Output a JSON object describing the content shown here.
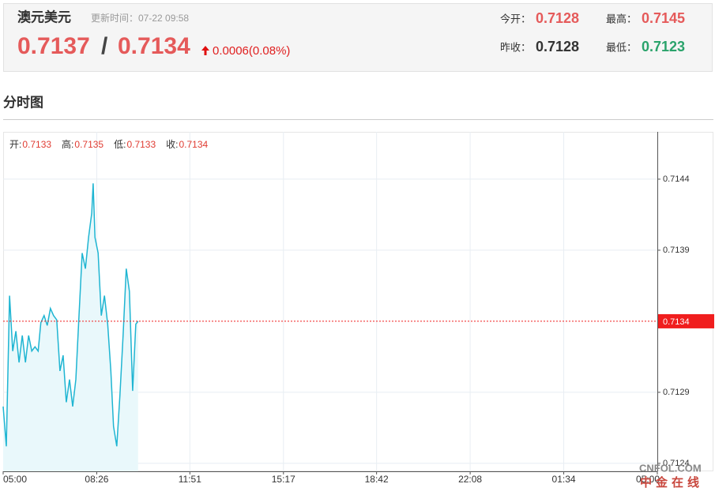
{
  "header": {
    "title": "澳元美元",
    "update": "更新时间：07-22 09:58",
    "price": 0.7137,
    "separator": "/",
    "price2": 0.7134,
    "change": "0.0006(0.08%)",
    "stats": [
      {
        "label": "今开：",
        "value": 0.7128
      },
      {
        "label": "最高：",
        "value": 0.7145
      },
      {
        "label": "昨收：",
        "value": 0.7128
      },
      {
        "label": "最低：",
        "value": 0.7123
      }
    ]
  },
  "section_title": "分时图",
  "watermark": {
    "brand": "CNFOL.COM",
    "name": "中金在线"
  },
  "chart_data": {
    "type": "line",
    "color": "#1fb5d2",
    "area_color": "#e9f8fb",
    "info": [
      {
        "label": "开:",
        "value": 0.7133
      },
      {
        "label": "高:",
        "value": 0.7135
      },
      {
        "label": "低:",
        "value": 0.7133
      },
      {
        "label": "收:",
        "value": 0.7134
      }
    ],
    "x": [
      0,
      7,
      14,
      21,
      28,
      35,
      42,
      49,
      56,
      63,
      70,
      77,
      83,
      90,
      97,
      104,
      111,
      118,
      125,
      132,
      139,
      146,
      153,
      160,
      167,
      174,
      181,
      188,
      195,
      198,
      202,
      209,
      216,
      223,
      230,
      237,
      243,
      250,
      257,
      264,
      271,
      278,
      285,
      292,
      297
    ],
    "values": [
      0.7128,
      0.71252,
      0.71358,
      0.71319,
      0.71333,
      0.71311,
      0.7133,
      0.71311,
      0.7133,
      0.71319,
      0.71322,
      0.71319,
      0.71339,
      0.71344,
      0.71337,
      0.71349,
      0.71344,
      0.71341,
      0.71305,
      0.71316,
      0.71283,
      0.71299,
      0.7128,
      0.71299,
      0.71344,
      0.71388,
      0.71377,
      0.71399,
      0.71416,
      0.71437,
      0.71399,
      0.71388,
      0.71344,
      0.71358,
      0.71338,
      0.71305,
      0.71266,
      0.71252,
      0.71288,
      0.7133,
      0.71377,
      0.71361,
      0.71291,
      0.71338,
      0.7134
    ],
    "last": 0.7134,
    "last_color": "#f01e1e",
    "xlim": [
      0,
      1440
    ],
    "xticks": [
      {
        "value": 0,
        "label": "05:00"
      },
      {
        "value": 206,
        "label": "08:26"
      },
      {
        "value": 411,
        "label": "11:51"
      },
      {
        "value": 617,
        "label": "15:17"
      },
      {
        "value": 822,
        "label": "18:42"
      },
      {
        "value": 1028,
        "label": "22:08"
      },
      {
        "value": 1234,
        "label": "01:34"
      },
      {
        "value": 1440,
        "label": "05:00"
      }
    ],
    "ylim": [
      0.712344,
      0.714733
    ],
    "yticks": [
      0.7124,
      0.7129,
      0.7139,
      0.7144
    ],
    "grid": true
  }
}
